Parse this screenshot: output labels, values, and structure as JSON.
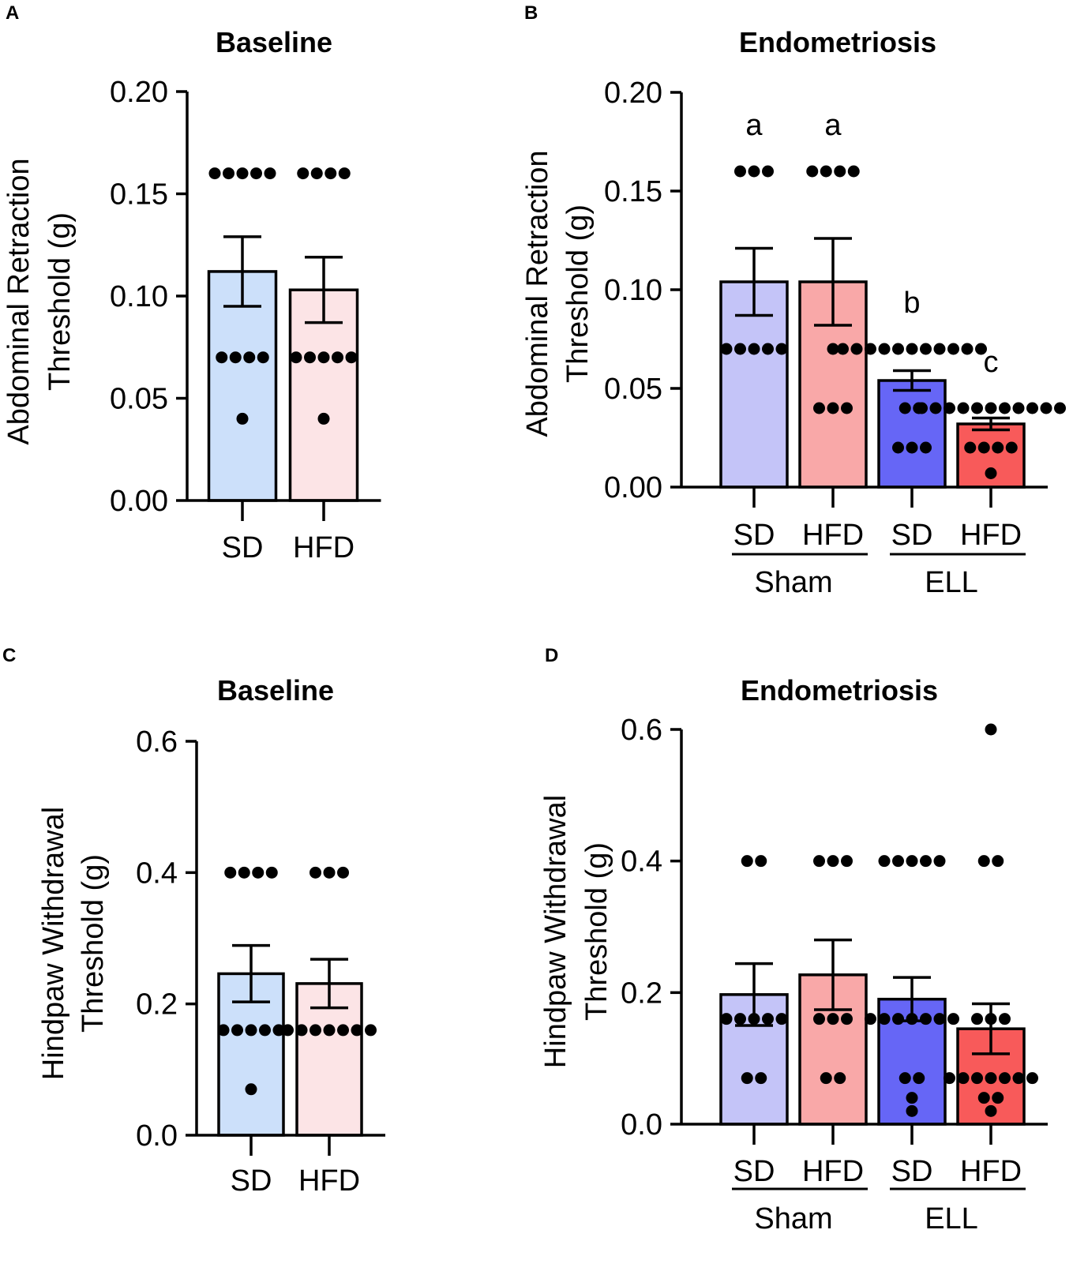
{
  "chart_data": [
    {
      "panel": "A",
      "type": "bar",
      "title": "Baseline",
      "ylabel": [
        "Abdominal Retraction",
        "Threshold (g)"
      ],
      "ylim": [
        0,
        0.2
      ],
      "yticks": [
        "0.00",
        "0.05",
        "0.10",
        "0.15",
        "0.20"
      ],
      "ytick_values": [
        0,
        0.05,
        0.1,
        0.15,
        0.2
      ],
      "categories": [
        "SD",
        "HFD"
      ],
      "group_labels": [],
      "sig_letters": [
        "",
        ""
      ],
      "values": [
        0.112,
        0.103
      ],
      "sem": [
        0.017,
        0.016
      ],
      "colors": [
        "#cce0fa",
        "#fce4e6"
      ],
      "points": [
        [
          0.16,
          0.16,
          0.16,
          0.16,
          0.16,
          0.07,
          0.07,
          0.07,
          0.07,
          0.04
        ],
        [
          0.16,
          0.16,
          0.16,
          0.16,
          0.07,
          0.07,
          0.07,
          0.07,
          0.07,
          0.04
        ]
      ]
    },
    {
      "panel": "B",
      "type": "bar",
      "title": "Endometriosis",
      "ylabel": [
        "Abdominal Retraction",
        "Threshold (g)"
      ],
      "ylim": [
        0,
        0.2
      ],
      "yticks": [
        "0.00",
        "0.05",
        "0.10",
        "0.15",
        "0.20"
      ],
      "ytick_values": [
        0,
        0.05,
        0.1,
        0.15,
        0.2
      ],
      "categories": [
        "SD",
        "HFD",
        "SD",
        "HFD"
      ],
      "group_labels": [
        {
          "label": "Sham",
          "span": [
            0,
            1
          ]
        },
        {
          "label": "ELL",
          "span": [
            2,
            3
          ]
        }
      ],
      "sig_letters": [
        "a",
        "a",
        "b",
        "c"
      ],
      "values": [
        0.104,
        0.104,
        0.054,
        0.032
      ],
      "sem": [
        0.017,
        0.022,
        0.005,
        0.003
      ],
      "colors": [
        "#c4c4f8",
        "#f9a8a8",
        "#6666f6",
        "#f85a5a"
      ],
      "points": [
        [
          0.16,
          0.16,
          0.16,
          0.07,
          0.07,
          0.07,
          0.07,
          0.07
        ],
        [
          0.16,
          0.16,
          0.16,
          0.16,
          0.07,
          0.04,
          0.04,
          0.04
        ],
        [
          0.07,
          0.07,
          0.07,
          0.07,
          0.07,
          0.07,
          0.07,
          0.07,
          0.07,
          0.07,
          0.07,
          0.04,
          0.04,
          0.02,
          0.02,
          0.02
        ],
        [
          0.04,
          0.04,
          0.04,
          0.04,
          0.04,
          0.04,
          0.04,
          0.04,
          0.04,
          0.04,
          0.04,
          0.02,
          0.02,
          0.02,
          0.02,
          0.007
        ]
      ]
    },
    {
      "panel": "C",
      "type": "bar",
      "title": "Baseline",
      "ylabel": [
        "Hindpaw Withdrawal",
        "Threshold (g)"
      ],
      "ylim": [
        0,
        0.6
      ],
      "yticks": [
        "0.0",
        "0.2",
        "0.4",
        "0.6"
      ],
      "ytick_values": [
        0,
        0.2,
        0.4,
        0.6
      ],
      "categories": [
        "SD",
        "HFD"
      ],
      "group_labels": [],
      "sig_letters": [
        "",
        ""
      ],
      "values": [
        0.246,
        0.231
      ],
      "sem": [
        0.043,
        0.037
      ],
      "colors": [
        "#cce0fa",
        "#fce4e6"
      ],
      "points": [
        [
          0.4,
          0.4,
          0.4,
          0.4,
          0.16,
          0.16,
          0.16,
          0.16,
          0.16,
          0.07
        ],
        [
          0.4,
          0.4,
          0.4,
          0.16,
          0.16,
          0.16,
          0.16,
          0.16,
          0.16,
          0.16
        ]
      ]
    },
    {
      "panel": "D",
      "type": "bar",
      "title": "Endometriosis",
      "ylabel": [
        "Hindpaw Withdrawal",
        "Threshold (g)"
      ],
      "ylim": [
        0,
        0.6
      ],
      "yticks": [
        "0.0",
        "0.2",
        "0.4",
        "0.6"
      ],
      "ytick_values": [
        0,
        0.2,
        0.4,
        0.6
      ],
      "categories": [
        "SD",
        "HFD",
        "SD",
        "HFD"
      ],
      "group_labels": [
        {
          "label": "Sham",
          "span": [
            0,
            1
          ]
        },
        {
          "label": "ELL",
          "span": [
            2,
            3
          ]
        }
      ],
      "sig_letters": [
        "",
        "",
        "",
        ""
      ],
      "values": [
        0.197,
        0.227,
        0.19,
        0.145
      ],
      "sem": [
        0.047,
        0.053,
        0.033,
        0.038
      ],
      "colors": [
        "#c4c4f8",
        "#f9a8a8",
        "#6666f6",
        "#f85a5a"
      ],
      "points": [
        [
          0.4,
          0.4,
          0.16,
          0.16,
          0.16,
          0.16,
          0.16,
          0.07,
          0.07
        ],
        [
          0.4,
          0.4,
          0.4,
          0.16,
          0.16,
          0.16,
          0.07,
          0.07
        ],
        [
          0.4,
          0.4,
          0.4,
          0.4,
          0.4,
          0.16,
          0.16,
          0.16,
          0.16,
          0.16,
          0.16,
          0.16,
          0.07,
          0.07,
          0.04,
          0.02
        ],
        [
          0.6,
          0.4,
          0.4,
          0.16,
          0.16,
          0.16,
          0.07,
          0.07,
          0.07,
          0.07,
          0.07,
          0.07,
          0.07,
          0.04,
          0.04,
          0.02
        ]
      ]
    }
  ]
}
